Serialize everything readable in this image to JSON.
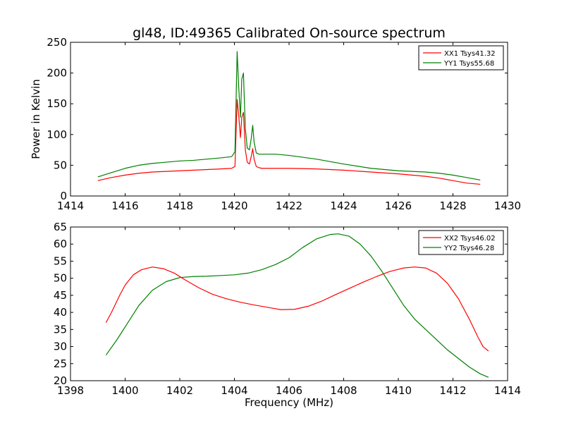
{
  "figure": {
    "title": "gl48, ID:49365 Calibrated On-source spectrum"
  },
  "chart_data": [
    {
      "type": "line",
      "title": "gl48, ID:49365 Calibrated On-source spectrum",
      "xlabel": "",
      "ylabel": "Power in Kelvin",
      "xlim": [
        1414,
        1430
      ],
      "ylim": [
        0,
        250
      ],
      "xticks": [
        1414,
        1416,
        1418,
        1420,
        1422,
        1424,
        1426,
        1428,
        1430
      ],
      "yticks": [
        0,
        50,
        100,
        150,
        200,
        250
      ],
      "grid": false,
      "legend_position": "top-right",
      "series": [
        {
          "name": "XX1 Tsys41.32",
          "color": "#ff0000",
          "x": [
            1415.0,
            1415.5,
            1416.0,
            1416.5,
            1417.0,
            1417.5,
            1418.0,
            1418.5,
            1419.0,
            1419.5,
            1419.9,
            1420.02,
            1420.1,
            1420.16,
            1420.22,
            1420.27,
            1420.33,
            1420.4,
            1420.47,
            1420.55,
            1420.62,
            1420.67,
            1420.72,
            1420.8,
            1420.9,
            1421.0,
            1421.5,
            1422.0,
            1423.0,
            1424.0,
            1425.0,
            1426.0,
            1427.0,
            1427.5,
            1428.0,
            1428.5,
            1429.0
          ],
          "y": [
            25,
            30,
            34,
            37,
            39,
            40,
            41,
            42,
            43,
            44,
            45,
            48,
            157,
            130,
            95,
            128,
            136,
            75,
            55,
            52,
            65,
            77,
            60,
            48,
            46,
            45,
            45,
            45,
            44,
            42,
            39,
            36,
            32,
            29,
            25,
            21,
            19
          ]
        },
        {
          "name": "YY1 Tsys55.68",
          "color": "#008000",
          "x": [
            1415.0,
            1415.5,
            1416.0,
            1416.5,
            1417.0,
            1417.5,
            1418.0,
            1418.5,
            1419.0,
            1419.5,
            1419.9,
            1420.02,
            1420.1,
            1420.16,
            1420.22,
            1420.27,
            1420.33,
            1420.4,
            1420.47,
            1420.55,
            1420.62,
            1420.67,
            1420.72,
            1420.8,
            1420.9,
            1421.0,
            1421.5,
            1422.0,
            1423.0,
            1424.0,
            1425.0,
            1426.0,
            1427.0,
            1427.5,
            1428.0,
            1428.5,
            1429.0
          ],
          "y": [
            31,
            38,
            45,
            50,
            53,
            55,
            57,
            58,
            60,
            62,
            64,
            72,
            235,
            175,
            128,
            190,
            200,
            110,
            78,
            75,
            95,
            115,
            88,
            70,
            68,
            68,
            68,
            66,
            60,
            52,
            45,
            41,
            39,
            37,
            34,
            30,
            26
          ]
        }
      ]
    },
    {
      "type": "line",
      "title": "",
      "xlabel": "Frequency (MHz)",
      "ylabel": "",
      "xlim": [
        1398,
        1414
      ],
      "ylim": [
        20,
        65
      ],
      "xticks": [
        1398,
        1400,
        1402,
        1404,
        1406,
        1408,
        1410,
        1412,
        1414
      ],
      "yticks": [
        20,
        25,
        30,
        35,
        40,
        45,
        50,
        55,
        60,
        65
      ],
      "grid": false,
      "legend_position": "top-right",
      "series": [
        {
          "name": "XX2 Tsys46.02",
          "color": "#ff0000",
          "x": [
            1399.3,
            1399.5,
            1399.8,
            1400.0,
            1400.3,
            1400.6,
            1401.0,
            1401.4,
            1401.8,
            1402.2,
            1402.7,
            1403.2,
            1403.7,
            1404.2,
            1404.7,
            1405.2,
            1405.7,
            1406.2,
            1406.7,
            1407.2,
            1407.7,
            1408.2,
            1408.7,
            1409.2,
            1409.7,
            1410.2,
            1410.6,
            1411.0,
            1411.4,
            1411.8,
            1412.2,
            1412.6,
            1412.9,
            1413.1,
            1413.3
          ],
          "y": [
            37,
            40,
            45,
            48,
            51,
            52.5,
            53.3,
            52.8,
            51.5,
            49.5,
            47.2,
            45.3,
            44,
            43,
            42.2,
            41.5,
            40.8,
            40.9,
            41.8,
            43.3,
            45.2,
            47,
            48.8,
            50.5,
            52,
            53,
            53.3,
            53,
            51.5,
            48.5,
            44,
            38,
            33,
            30,
            28.7
          ]
        },
        {
          "name": "YY2 Tsys46.28",
          "color": "#008000",
          "x": [
            1399.3,
            1399.7,
            1400.1,
            1400.5,
            1401.0,
            1401.5,
            1402.0,
            1402.5,
            1403.0,
            1403.5,
            1404.0,
            1404.5,
            1405.0,
            1405.5,
            1406.0,
            1406.5,
            1407.0,
            1407.5,
            1407.8,
            1408.2,
            1408.6,
            1409.0,
            1409.4,
            1409.8,
            1410.2,
            1410.6,
            1411.0,
            1411.4,
            1411.8,
            1412.2,
            1412.6,
            1413.0,
            1413.3
          ],
          "y": [
            27.5,
            32,
            37,
            42,
            46.5,
            49,
            50.2,
            50.5,
            50.6,
            50.8,
            51,
            51.5,
            52.5,
            54,
            56,
            59,
            61.5,
            62.8,
            63,
            62.3,
            60,
            56.5,
            52,
            47,
            42,
            38,
            35,
            32,
            29,
            26.5,
            24,
            22,
            21
          ]
        }
      ]
    }
  ]
}
